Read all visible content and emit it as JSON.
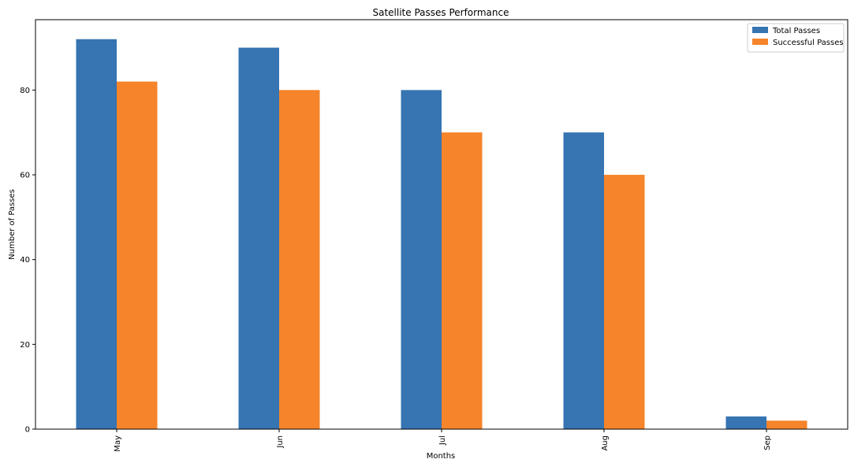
{
  "chart_data": {
    "type": "bar",
    "title": "Satellite Passes Performance",
    "xlabel": "Months",
    "ylabel": "Number of Passes",
    "categories": [
      "May",
      "Jun",
      "Jul",
      "Aug",
      "Sep"
    ],
    "series": [
      {
        "name": "Total Passes",
        "values": [
          92,
          90,
          80,
          70,
          3
        ],
        "color": "#3674b2"
      },
      {
        "name": "Successful Passes",
        "values": [
          82,
          80,
          70,
          60,
          2
        ],
        "color": "#f5842a"
      }
    ],
    "ylim": [
      0,
      96.6
    ],
    "yticks": [
      0,
      20,
      40,
      60,
      80
    ],
    "grid": false,
    "legend_position": "top-right",
    "xtick_rotation": 90
  }
}
